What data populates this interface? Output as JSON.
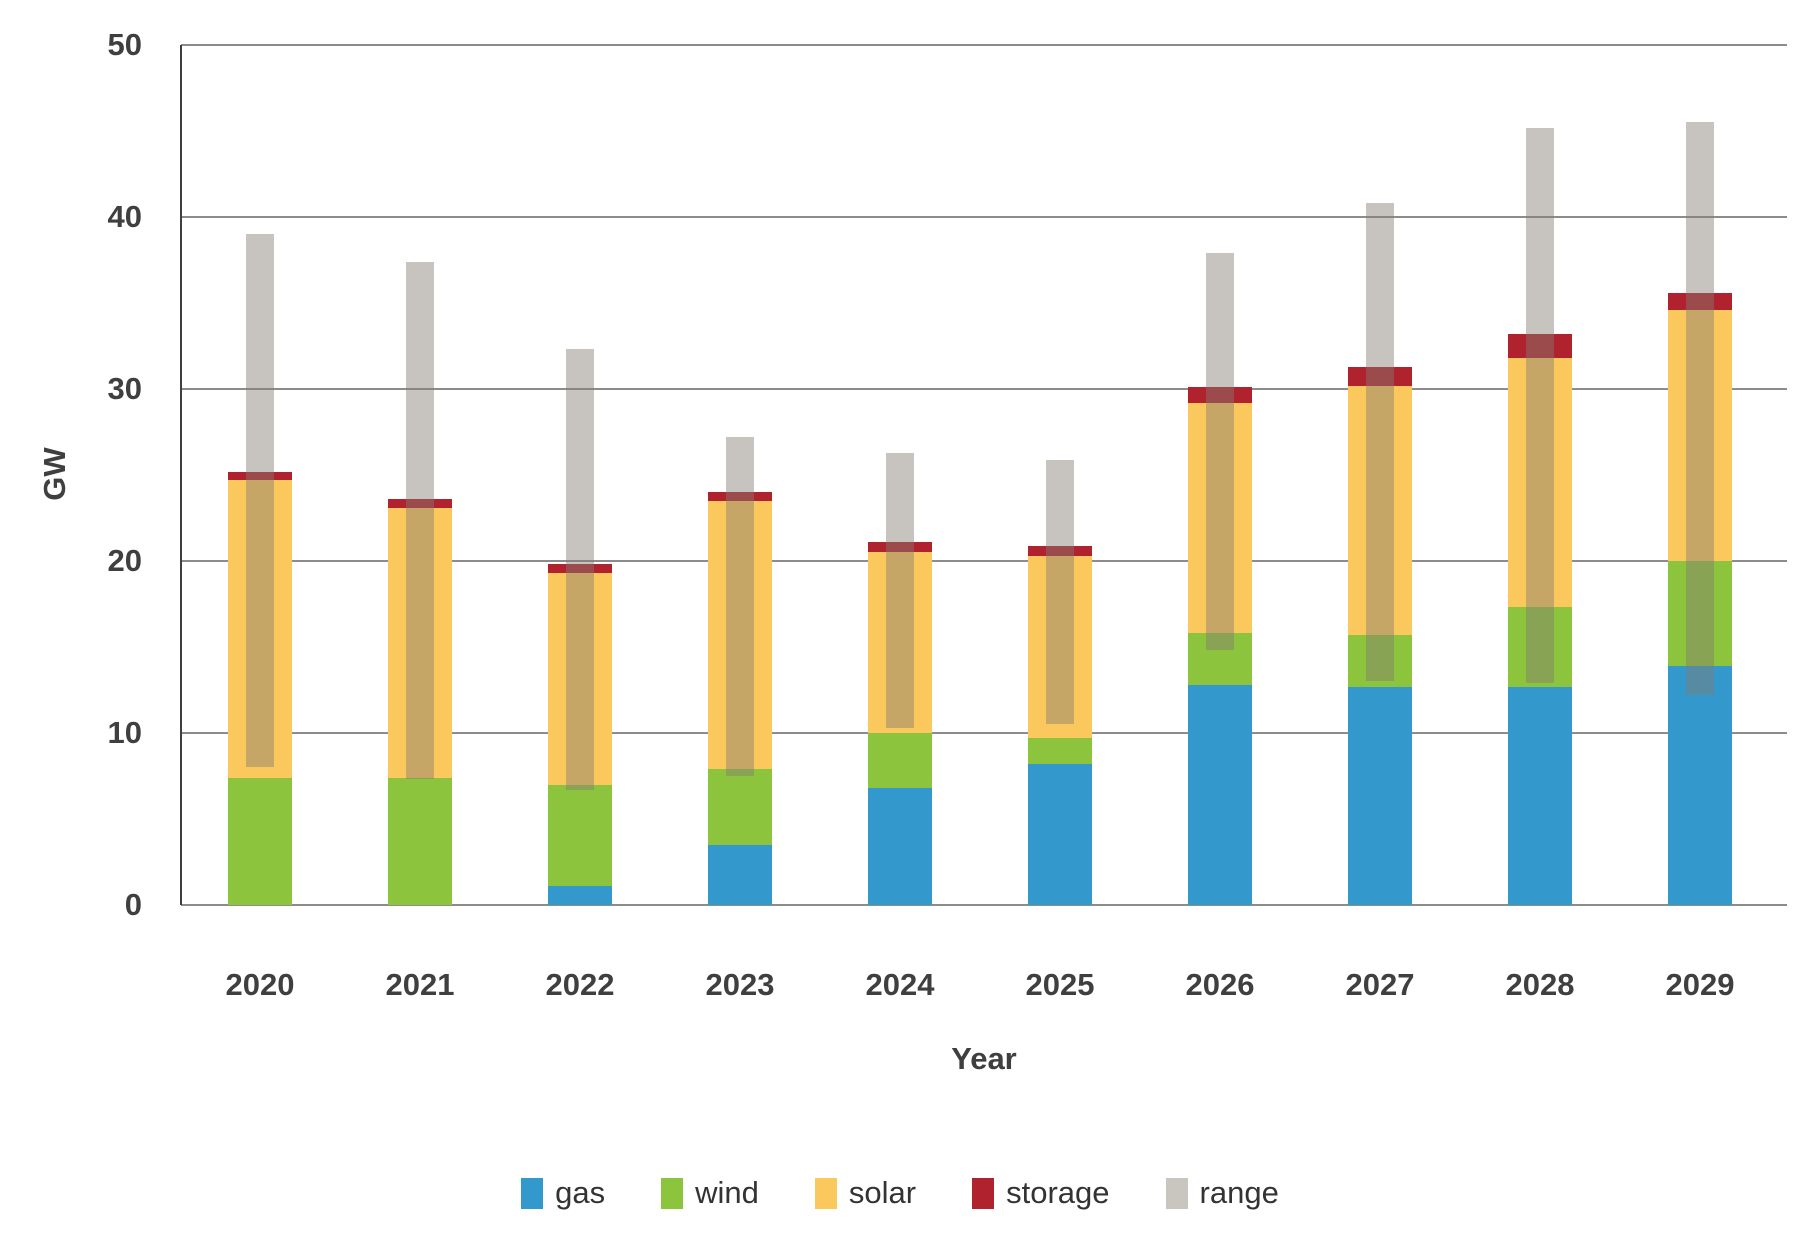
{
  "chart_data": {
    "type": "bar",
    "stacked": true,
    "title": "",
    "xlabel": "Year",
    "ylabel": "GW",
    "ylim": [
      0,
      50
    ],
    "ytick_step": 10,
    "ytick_labels": [
      "0",
      "10",
      "20",
      "30",
      "40",
      "50"
    ],
    "grid": true,
    "legend_position": "bottom",
    "categories": [
      "2020",
      "2021",
      "2022",
      "2023",
      "2024",
      "2025",
      "2026",
      "2027",
      "2028",
      "2029"
    ],
    "series": [
      {
        "name": "gas",
        "color": "#3398cc",
        "values": [
          0,
          0,
          1.1,
          3.5,
          6.8,
          8.2,
          12.8,
          12.7,
          12.7,
          13.9
        ]
      },
      {
        "name": "wind",
        "color": "#8cc43d",
        "values": [
          7.4,
          7.4,
          5.9,
          4.4,
          3.2,
          1.5,
          3.0,
          3.0,
          4.6,
          6.1
        ]
      },
      {
        "name": "solar",
        "color": "#fbc85e",
        "values": [
          17.3,
          15.7,
          12.3,
          15.6,
          10.5,
          10.6,
          13.4,
          14.5,
          14.5,
          14.6
        ]
      },
      {
        "name": "storage",
        "color": "#b0232e",
        "values": [
          0.5,
          0.5,
          0.5,
          0.5,
          0.6,
          0.6,
          0.9,
          1.1,
          1.4,
          1.0
        ]
      }
    ],
    "range_series": {
      "name": "range",
      "low": [
        8.0,
        7.3,
        6.7,
        7.5,
        10.3,
        10.5,
        14.8,
        13.0,
        12.9,
        12.2
      ],
      "high": [
        39.0,
        37.4,
        32.3,
        27.2,
        26.3,
        25.9,
        37.9,
        40.8,
        45.2,
        45.5
      ],
      "overlay_fill": "rgba(130,124,112,0.45)",
      "legend_color": "#c9c6bf"
    },
    "colors": {
      "background": "#ffffff",
      "text": "#3f3f3f",
      "grid": "#8c8c8c",
      "axis": "#3f3f3f",
      "legend_text": "#333333"
    }
  }
}
